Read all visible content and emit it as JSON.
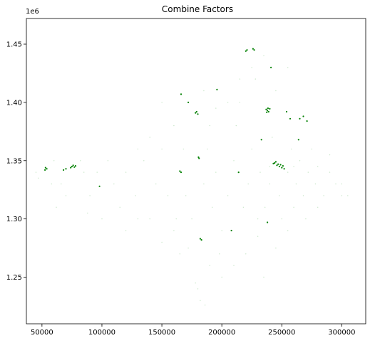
{
  "chart_data": {
    "type": "scatter",
    "title": "Combine Factors",
    "xlabel": "",
    "ylabel": "",
    "y_offset_text": "1e6",
    "xlim": [
      37000,
      320000
    ],
    "ylim": [
      1210000,
      1472000
    ],
    "x_ticks": [
      50000,
      100000,
      150000,
      200000,
      250000,
      300000
    ],
    "x_tick_labels": [
      "50000",
      "100000",
      "150000",
      "200000",
      "250000",
      "300000"
    ],
    "y_ticks": [
      1250000,
      1300000,
      1350000,
      1400000,
      1450000
    ],
    "y_tick_labels": [
      "1.25",
      "1.30",
      "1.35",
      "1.40",
      "1.45"
    ],
    "grid": false,
    "colors": {
      "dense": "#008000",
      "sparse": "#c8e6c8",
      "axes": "#000000"
    },
    "series": [
      {
        "role": "dense-clusters",
        "color": "#008000",
        "points": [
          [
            53000,
            1344000
          ],
          [
            54000,
            1343000
          ],
          [
            52500,
            1342000
          ],
          [
            68000,
            1342000
          ],
          [
            70000,
            1343000
          ],
          [
            75000,
            1345000
          ],
          [
            76000,
            1346000
          ],
          [
            77000,
            1344500
          ],
          [
            78000,
            1345500
          ],
          [
            74000,
            1344000
          ],
          [
            98000,
            1328000
          ],
          [
            165000,
            1341000
          ],
          [
            166000,
            1340000
          ],
          [
            178000,
            1391000
          ],
          [
            180000,
            1390000
          ],
          [
            179000,
            1392000
          ],
          [
            181000,
            1352000
          ],
          [
            180500,
            1353000
          ],
          [
            182000,
            1283000
          ],
          [
            183000,
            1282000
          ],
          [
            166000,
            1407000
          ],
          [
            172000,
            1400000
          ],
          [
            196000,
            1411000
          ],
          [
            220000,
            1444000
          ],
          [
            221000,
            1445000
          ],
          [
            226000,
            1446000
          ],
          [
            227000,
            1445000
          ],
          [
            237000,
            1394000
          ],
          [
            238000,
            1393000
          ],
          [
            239000,
            1392000
          ],
          [
            240000,
            1394500
          ],
          [
            238500,
            1395000
          ],
          [
            237500,
            1391500
          ],
          [
            241000,
            1430000
          ],
          [
            233000,
            1368000
          ],
          [
            254000,
            1392000
          ],
          [
            257000,
            1386000
          ],
          [
            265000,
            1386000
          ],
          [
            268000,
            1388000
          ],
          [
            271000,
            1384000
          ],
          [
            244000,
            1348000
          ],
          [
            246000,
            1346000
          ],
          [
            248000,
            1345000
          ],
          [
            250000,
            1344000
          ],
          [
            252000,
            1343000
          ],
          [
            247000,
            1347000
          ],
          [
            249000,
            1346500
          ],
          [
            245000,
            1349000
          ],
          [
            251000,
            1345500
          ],
          [
            243000,
            1347500
          ],
          [
            214000,
            1340000
          ],
          [
            238000,
            1297000
          ],
          [
            208000,
            1290000
          ],
          [
            264000,
            1368000
          ]
        ]
      },
      {
        "role": "sparse-scatter",
        "color": "#c8e6c8",
        "points": [
          [
            58000,
            1330000
          ],
          [
            62000,
            1310000
          ],
          [
            66000,
            1330000
          ],
          [
            70000,
            1320000
          ],
          [
            82000,
            1350000
          ],
          [
            85000,
            1340000
          ],
          [
            90000,
            1320000
          ],
          [
            96000,
            1340000
          ],
          [
            105000,
            1350000
          ],
          [
            110000,
            1330000
          ],
          [
            115000,
            1310000
          ],
          [
            120000,
            1340000
          ],
          [
            128000,
            1320000
          ],
          [
            135000,
            1350000
          ],
          [
            140000,
            1300000
          ],
          [
            145000,
            1330000
          ],
          [
            150000,
            1360000
          ],
          [
            155000,
            1320000
          ],
          [
            160000,
            1380000
          ],
          [
            162000,
            1300000
          ],
          [
            168000,
            1360000
          ],
          [
            170000,
            1320000
          ],
          [
            175000,
            1300000
          ],
          [
            185000,
            1330000
          ],
          [
            188000,
            1360000
          ],
          [
            190000,
            1380000
          ],
          [
            192000,
            1310000
          ],
          [
            195000,
            1340000
          ],
          [
            198000,
            1270000
          ],
          [
            200000,
            1290000
          ],
          [
            205000,
            1320000
          ],
          [
            210000,
            1350000
          ],
          [
            212000,
            1380000
          ],
          [
            215000,
            1400000
          ],
          [
            218000,
            1310000
          ],
          [
            222000,
            1330000
          ],
          [
            225000,
            1360000
          ],
          [
            228000,
            1420000
          ],
          [
            230000,
            1300000
          ],
          [
            232000,
            1340000
          ],
          [
            235000,
            1250000
          ],
          [
            236000,
            1310000
          ],
          [
            240000,
            1330000
          ],
          [
            242000,
            1370000
          ],
          [
            245000,
            1410000
          ],
          [
            248000,
            1320000
          ],
          [
            250000,
            1300000
          ],
          [
            255000,
            1340000
          ],
          [
            258000,
            1360000
          ],
          [
            260000,
            1310000
          ],
          [
            262000,
            1330000
          ],
          [
            265000,
            1350000
          ],
          [
            268000,
            1320000
          ],
          [
            270000,
            1300000
          ],
          [
            272000,
            1340000
          ],
          [
            275000,
            1360000
          ],
          [
            278000,
            1330000
          ],
          [
            280000,
            1310000
          ],
          [
            285000,
            1320000
          ],
          [
            290000,
            1340000
          ],
          [
            295000,
            1330000
          ],
          [
            300000,
            1320000
          ],
          [
            180000,
            1240000
          ],
          [
            182000,
            1230000
          ],
          [
            186000,
            1226000
          ],
          [
            178000,
            1245000
          ],
          [
            190000,
            1260000
          ],
          [
            200000,
            1250000
          ],
          [
            210000,
            1260000
          ],
          [
            220000,
            1270000
          ],
          [
            160000,
            1290000
          ],
          [
            150000,
            1280000
          ],
          [
            165000,
            1270000
          ],
          [
            172000,
            1275000
          ],
          [
            230000,
            1285000
          ],
          [
            245000,
            1275000
          ],
          [
            255000,
            1290000
          ],
          [
            215000,
            1420000
          ],
          [
            225000,
            1430000
          ],
          [
            235000,
            1440000
          ],
          [
            255000,
            1430000
          ],
          [
            205000,
            1400000
          ],
          [
            195000,
            1395000
          ],
          [
            185000,
            1410000
          ],
          [
            150000,
            1400000
          ],
          [
            140000,
            1370000
          ],
          [
            130000,
            1360000
          ],
          [
            45000,
            1340000
          ],
          [
            47000,
            1335000
          ],
          [
            60000,
            1350000
          ],
          [
            100000,
            1300000
          ],
          [
            88000,
            1305000
          ],
          [
            120000,
            1290000
          ],
          [
            130000,
            1300000
          ],
          [
            240000,
            1345000
          ],
          [
            260000,
            1345000
          ],
          [
            280000,
            1345000
          ],
          [
            290000,
            1355000
          ],
          [
            300000,
            1330000
          ],
          [
            305000,
            1320000
          ]
        ]
      }
    ]
  }
}
